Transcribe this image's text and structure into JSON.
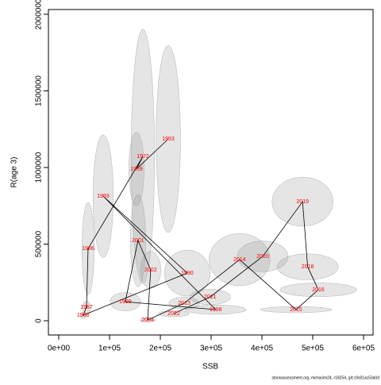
{
  "chart_data": {
    "type": "scatter",
    "xlabel": "SSB",
    "ylabel": "R(age 3)",
    "note": "stockassessment.org, mimasim24, r18254, git:c9c81ac53a0d",
    "labels": [
      "1953",
      "1959",
      "1972",
      "1986",
      "1987",
      "1988",
      "1990",
      "1993",
      "1998",
      "1999",
      "2001",
      "2002",
      "2004",
      "2013",
      "2014",
      "2015",
      "2016",
      "2018",
      "2019",
      "2020",
      "2021",
      "2022"
    ],
    "x": [
      215600,
      153000,
      165600,
      57800,
      54700,
      48000,
      253000,
      87500,
      309000,
      131000,
      156000,
      181000,
      175000,
      247000,
      356000,
      467000,
      511000,
      490000,
      480000,
      401500,
      298000,
      226500
    ],
    "values": [
      1186000,
      990000,
      1072000,
      471000,
      88000,
      36000,
      311000,
      813000,
      72500,
      124000,
      523000,
      332000,
      5000,
      114000,
      399000,
      72500,
      202000,
      352000,
      777000,
      420000,
      155000,
      46600
    ],
    "x_err": [
      24000,
      15000,
      23000,
      12000,
      8000,
      6000,
      45000,
      20000,
      60000,
      30000,
      15000,
      20000,
      15000,
      30000,
      60000,
      70000,
      75000,
      60000,
      60000,
      50000,
      40000,
      30000
    ],
    "y_err": [
      610000,
      240000,
      830000,
      300000,
      40000,
      20000,
      150000,
      400000,
      30000,
      60000,
      300000,
      120000,
      15000,
      40000,
      170000,
      20000,
      45000,
      85000,
      160000,
      100000,
      50000,
      20000
    ],
    "label_color": "#ff0000",
    "xlim": [
      -20300,
      618750
    ],
    "ylim": [
      -93000,
      2031000
    ],
    "xticks": [
      {
        "value": 0,
        "label": "0e+00"
      },
      {
        "value": 100000,
        "label": "1e+05"
      },
      {
        "value": 200000,
        "label": "2e+05"
      },
      {
        "value": 300000,
        "label": "3e+05"
      },
      {
        "value": 400000,
        "label": "4e+05"
      },
      {
        "value": 500000,
        "label": "5e+05"
      },
      {
        "value": 600000,
        "label": "6e+05"
      }
    ],
    "yticks": [
      0,
      500000,
      1000000,
      1500000,
      2000000
    ]
  }
}
